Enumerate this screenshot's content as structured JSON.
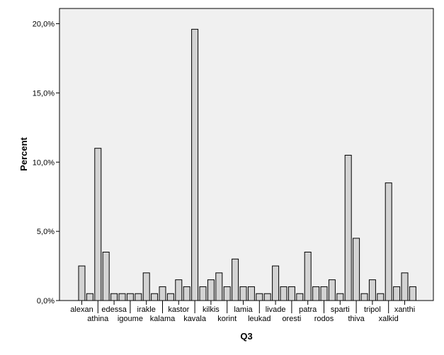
{
  "chart_data": {
    "type": "bar",
    "xlabel": "Q3",
    "ylabel": "Percent",
    "ylim": [
      0,
      21.1
    ],
    "yticks": [
      0,
      5,
      10,
      15,
      20
    ],
    "ytick_labels": [
      "0,0%",
      "5,0%",
      "10,0%",
      "15,0%",
      "20,0%"
    ],
    "grid": false,
    "values": [
      2.5,
      0.5,
      11.0,
      3.5,
      0.5,
      0.5,
      0.5,
      0.5,
      2.0,
      0.5,
      1.0,
      0.5,
      1.5,
      1.0,
      19.6,
      1.0,
      1.5,
      2.0,
      1.0,
      3.0,
      1.0,
      1.0,
      0.5,
      0.5,
      2.5,
      1.0,
      1.0,
      0.5,
      3.5,
      1.0,
      1.0,
      1.5,
      0.5,
      10.5,
      4.5,
      0.5,
      1.5,
      0.5,
      8.5,
      1.0,
      2.0,
      1.0
    ],
    "category_labels": [
      {
        "index": 0,
        "text": "alexan",
        "row": 1
      },
      {
        "index": 2,
        "text": "athina",
        "row": 2
      },
      {
        "index": 4,
        "text": "edessa",
        "row": 1
      },
      {
        "index": 6,
        "text": "igoume",
        "row": 2
      },
      {
        "index": 8,
        "text": "irakle",
        "row": 1
      },
      {
        "index": 10,
        "text": "kalama",
        "row": 2
      },
      {
        "index": 12,
        "text": "kastor",
        "row": 1
      },
      {
        "index": 14,
        "text": "kavala",
        "row": 2
      },
      {
        "index": 16,
        "text": "kilkis",
        "row": 1
      },
      {
        "index": 18,
        "text": "korint",
        "row": 2
      },
      {
        "index": 20,
        "text": "lamia",
        "row": 1
      },
      {
        "index": 22,
        "text": "leukad",
        "row": 2
      },
      {
        "index": 24,
        "text": "livade",
        "row": 1
      },
      {
        "index": 26,
        "text": "oresti",
        "row": 2
      },
      {
        "index": 28,
        "text": "patra",
        "row": 1
      },
      {
        "index": 30,
        "text": "rodos",
        "row": 2
      },
      {
        "index": 32,
        "text": "sparti",
        "row": 1
      },
      {
        "index": 34,
        "text": "thiva",
        "row": 2
      },
      {
        "index": 36,
        "text": "tripol",
        "row": 1
      },
      {
        "index": 38,
        "text": "xalkid",
        "row": 2
      },
      {
        "index": 40,
        "text": "xanthi",
        "row": 1
      }
    ],
    "colors": {
      "plot_background": "#f0f0f0",
      "bar_fill": "#d3d3d3",
      "bar_stroke": "#000000"
    }
  }
}
